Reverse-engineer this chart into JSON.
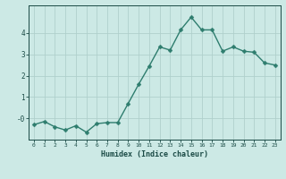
{
  "x": [
    0,
    1,
    2,
    3,
    4,
    5,
    6,
    7,
    8,
    9,
    10,
    11,
    12,
    13,
    14,
    15,
    16,
    17,
    18,
    19,
    20,
    21,
    22,
    23
  ],
  "y": [
    -0.3,
    -0.15,
    -0.4,
    -0.55,
    -0.35,
    -0.65,
    -0.25,
    -0.2,
    -0.2,
    0.7,
    1.6,
    2.45,
    3.35,
    3.2,
    4.15,
    4.75,
    4.15,
    4.15,
    3.15,
    3.35,
    3.15,
    3.1,
    2.6,
    2.5
  ],
  "xlabel": "Humidex (Indice chaleur)",
  "xlim": [
    -0.5,
    23.5
  ],
  "ylim": [
    -1.0,
    5.3
  ],
  "yticks": [
    0,
    1,
    2,
    3,
    4
  ],
  "ytick_labels": [
    "-0",
    "1",
    "2",
    "3",
    "4"
  ],
  "bg_color": "#cce9e5",
  "line_color": "#2e7d6e",
  "grid_color": "#b0d0cc",
  "label_color": "#1a4a45",
  "markersize": 2.5,
  "linewidth": 1.0
}
